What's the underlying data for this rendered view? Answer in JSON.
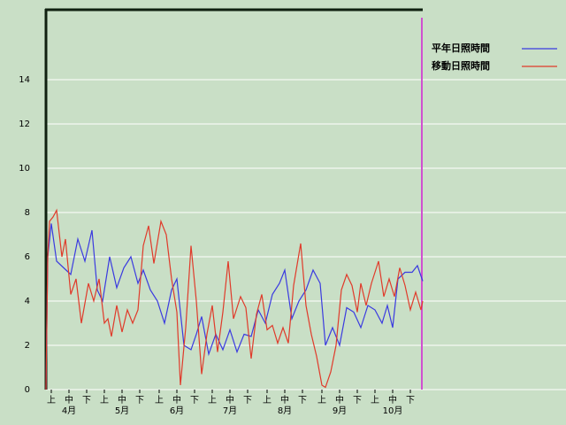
{
  "chart_data": {
    "type": "line",
    "xlim": [
      0,
      213
    ],
    "ylim": [
      0,
      17.2
    ],
    "yticks": [
      0,
      2,
      4,
      6,
      8,
      10,
      12,
      14
    ],
    "xticks": [
      {
        "value": 3,
        "label": "上"
      },
      {
        "value": 13,
        "label": "中"
      },
      {
        "value": 23,
        "label": "下"
      },
      {
        "value": 33,
        "label": "上"
      },
      {
        "value": 43,
        "label": "中"
      },
      {
        "value": 53,
        "label": "下"
      },
      {
        "value": 64,
        "label": "上"
      },
      {
        "value": 74,
        "label": "中"
      },
      {
        "value": 84,
        "label": "下"
      },
      {
        "value": 94,
        "label": "上"
      },
      {
        "value": 104,
        "label": "中"
      },
      {
        "value": 114,
        "label": "下"
      },
      {
        "value": 125,
        "label": "上"
      },
      {
        "value": 135,
        "label": "中"
      },
      {
        "value": 145,
        "label": "下"
      },
      {
        "value": 156,
        "label": "上"
      },
      {
        "value": 166,
        "label": "中"
      },
      {
        "value": 176,
        "label": "下"
      },
      {
        "value": 186,
        "label": "上"
      },
      {
        "value": 196,
        "label": "中"
      },
      {
        "value": 206,
        "label": "下"
      }
    ],
    "month_ticks": [
      {
        "value": 13,
        "label": "4月"
      },
      {
        "value": 43,
        "label": "5月"
      },
      {
        "value": 74,
        "label": "6月"
      },
      {
        "value": 104,
        "label": "7月"
      },
      {
        "value": 135,
        "label": "8月"
      },
      {
        "value": 166,
        "label": "9月"
      },
      {
        "value": 196,
        "label": "10月"
      }
    ],
    "grid": true,
    "series": [
      {
        "name": "平年日照時間",
        "color": "#3a3ae0",
        "x": [
          0,
          1,
          3,
          6,
          10,
          14,
          18,
          22,
          26,
          29,
          32,
          36,
          40,
          44,
          48,
          52,
          55,
          59,
          63,
          67,
          71,
          74,
          78,
          82,
          85,
          88,
          92,
          96,
          100,
          104,
          108,
          112,
          116,
          120,
          124,
          128,
          132,
          135,
          139,
          143,
          147,
          151,
          155,
          158,
          162,
          166,
          170,
          174,
          178,
          182,
          186,
          190,
          193,
          196,
          199,
          203,
          207,
          210,
          213
        ],
        "values": [
          0,
          6,
          7.5,
          5.8,
          5.5,
          5.2,
          6.8,
          5.8,
          7.2,
          4.5,
          4,
          6,
          4.6,
          5.5,
          6,
          4.8,
          5.4,
          4.5,
          4,
          3,
          4.5,
          5,
          2,
          1.8,
          2.5,
          3.3,
          1.6,
          2.5,
          1.8,
          2.7,
          1.7,
          2.5,
          2.4,
          3.6,
          3,
          4.3,
          4.8,
          5.4,
          3.2,
          4,
          4.5,
          5.4,
          4.8,
          2,
          2.8,
          2,
          3.7,
          3.5,
          2.8,
          3.8,
          3.6,
          3,
          3.8,
          2.8,
          5,
          5.3,
          5.3,
          5.6,
          4.9
        ]
      },
      {
        "name": "移動日照時間",
        "color": "#e03a2a",
        "x": [
          0,
          1,
          2,
          4,
          6,
          9,
          11,
          14,
          17,
          20,
          24,
          27,
          30,
          33,
          35,
          37,
          40,
          43,
          46,
          49,
          52,
          55,
          58,
          61,
          65,
          68,
          71,
          74,
          76,
          79,
          82,
          85,
          88,
          91,
          94,
          97,
          100,
          103,
          106,
          110,
          113,
          116,
          119,
          122,
          125,
          128,
          131,
          134,
          137,
          140,
          144,
          147,
          150,
          153,
          156,
          158,
          161,
          164,
          167,
          170,
          173,
          176,
          178,
          181,
          184,
          188,
          191,
          194,
          197,
          200,
          203,
          206,
          209,
          212,
          213
        ],
        "values": [
          0,
          6,
          7.6,
          7.8,
          8.1,
          6,
          6.8,
          4.3,
          5,
          3,
          4.8,
          4,
          5,
          3,
          3.2,
          2.4,
          3.8,
          2.6,
          3.6,
          3,
          3.6,
          6.5,
          7.4,
          5.7,
          7.6,
          7,
          5,
          3.5,
          0.2,
          2.8,
          6.5,
          4,
          0.7,
          2.5,
          3.8,
          1.7,
          3.5,
          5.8,
          3.2,
          4.2,
          3.7,
          1.4,
          3.4,
          4.3,
          2.7,
          2.9,
          2.1,
          2.8,
          2.1,
          4.7,
          6.6,
          3.8,
          2.5,
          1.5,
          0.2,
          0.1,
          0.8,
          2,
          4.5,
          5.2,
          4.7,
          3.5,
          4.8,
          3.8,
          4.8,
          5.8,
          4.2,
          5,
          4.2,
          5.5,
          4.7,
          3.6,
          4.4,
          3.6,
          4
        ]
      }
    ]
  }
}
